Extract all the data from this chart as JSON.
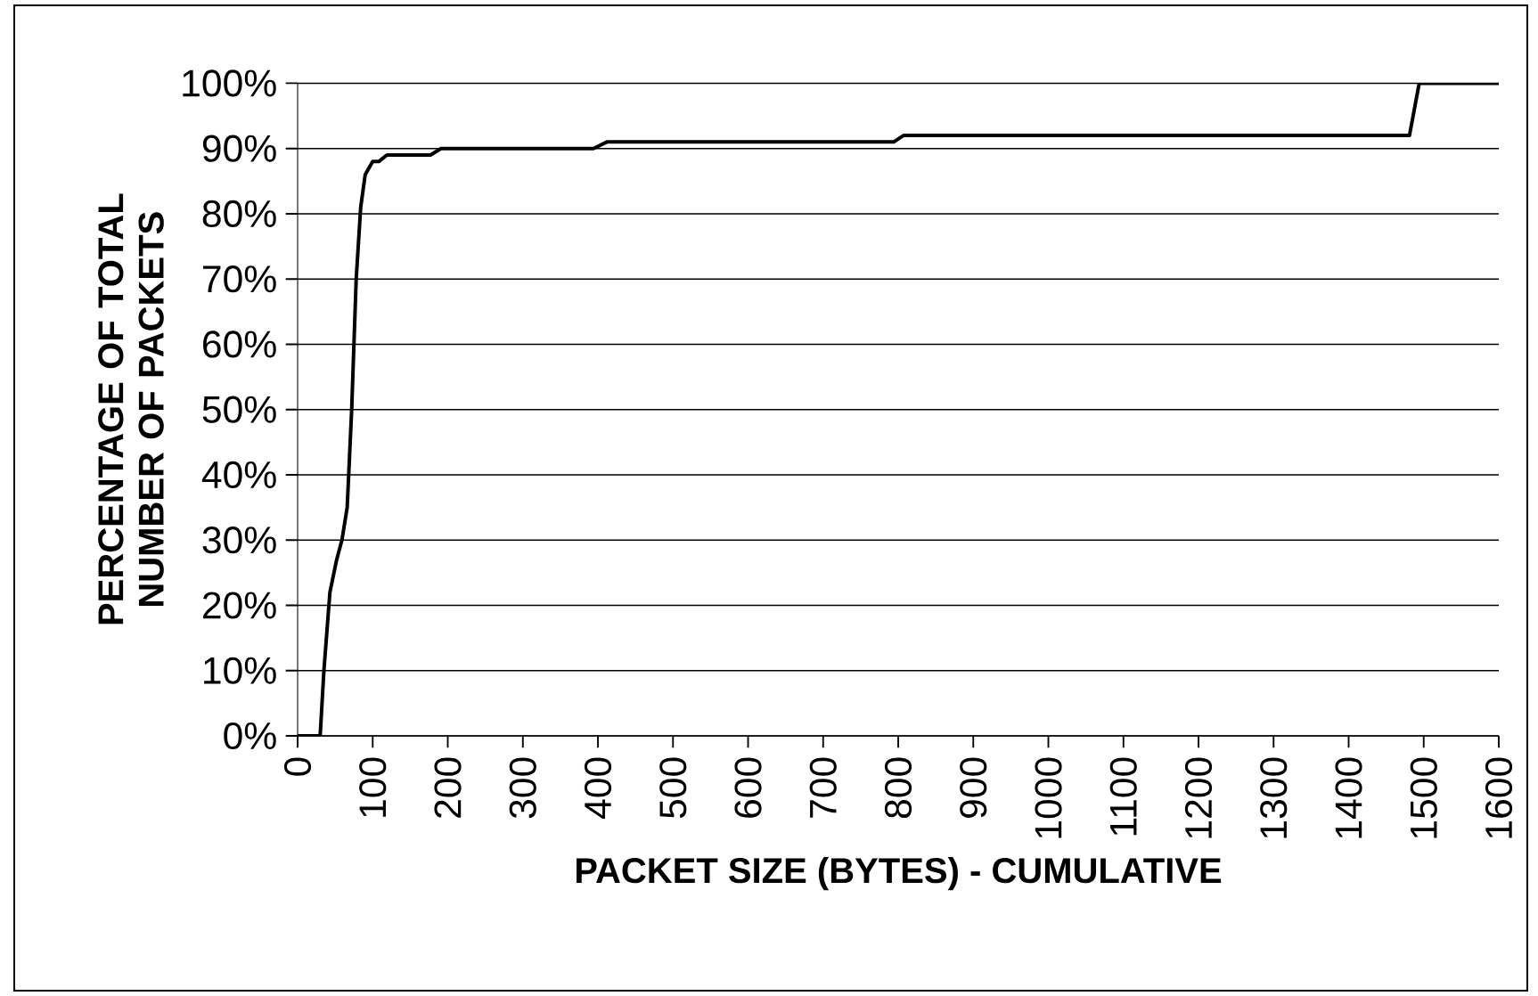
{
  "chart_data": {
    "type": "line",
    "xlabel": "PACKET SIZE (BYTES) - CUMULATIVE",
    "ylabel": "PERCENTAGE OF TOTAL NUMBER OF PACKETS",
    "xlim": [
      0,
      1600
    ],
    "xticks": [
      0,
      100,
      200,
      300,
      400,
      500,
      600,
      700,
      800,
      900,
      1000,
      1100,
      1200,
      1300,
      1400,
      1500,
      1600
    ],
    "ylim": [
      0,
      100
    ],
    "yticks": [
      {
        "value": 0,
        "label": "0%"
      },
      {
        "value": 10,
        "label": "10%"
      },
      {
        "value": 20,
        "label": "20%"
      },
      {
        "value": 30,
        "label": "30%"
      },
      {
        "value": 40,
        "label": "40%"
      },
      {
        "value": 50,
        "label": "50%"
      },
      {
        "value": 60,
        "label": "60%"
      },
      {
        "value": 70,
        "label": "70%"
      },
      {
        "value": 80,
        "label": "80%"
      },
      {
        "value": 90,
        "label": "90%"
      },
      {
        "value": 100,
        "label": "100%"
      }
    ],
    "grid": "y",
    "marker": "none",
    "line_style": "solid",
    "series": [
      {
        "color": "#000000",
        "x": [
          0,
          30,
          35,
          43,
          52,
          59,
          66,
          72,
          78,
          84,
          90,
          100,
          108,
          119,
          177,
          191,
          394,
          412,
          794,
          807,
          1481,
          1494,
          1600
        ],
        "values": [
          0,
          0,
          10,
          22,
          27,
          30,
          35,
          50,
          70,
          81,
          86,
          88,
          88,
          89,
          89,
          90,
          90,
          91,
          91,
          92,
          92,
          100,
          100
        ]
      }
    ]
  }
}
